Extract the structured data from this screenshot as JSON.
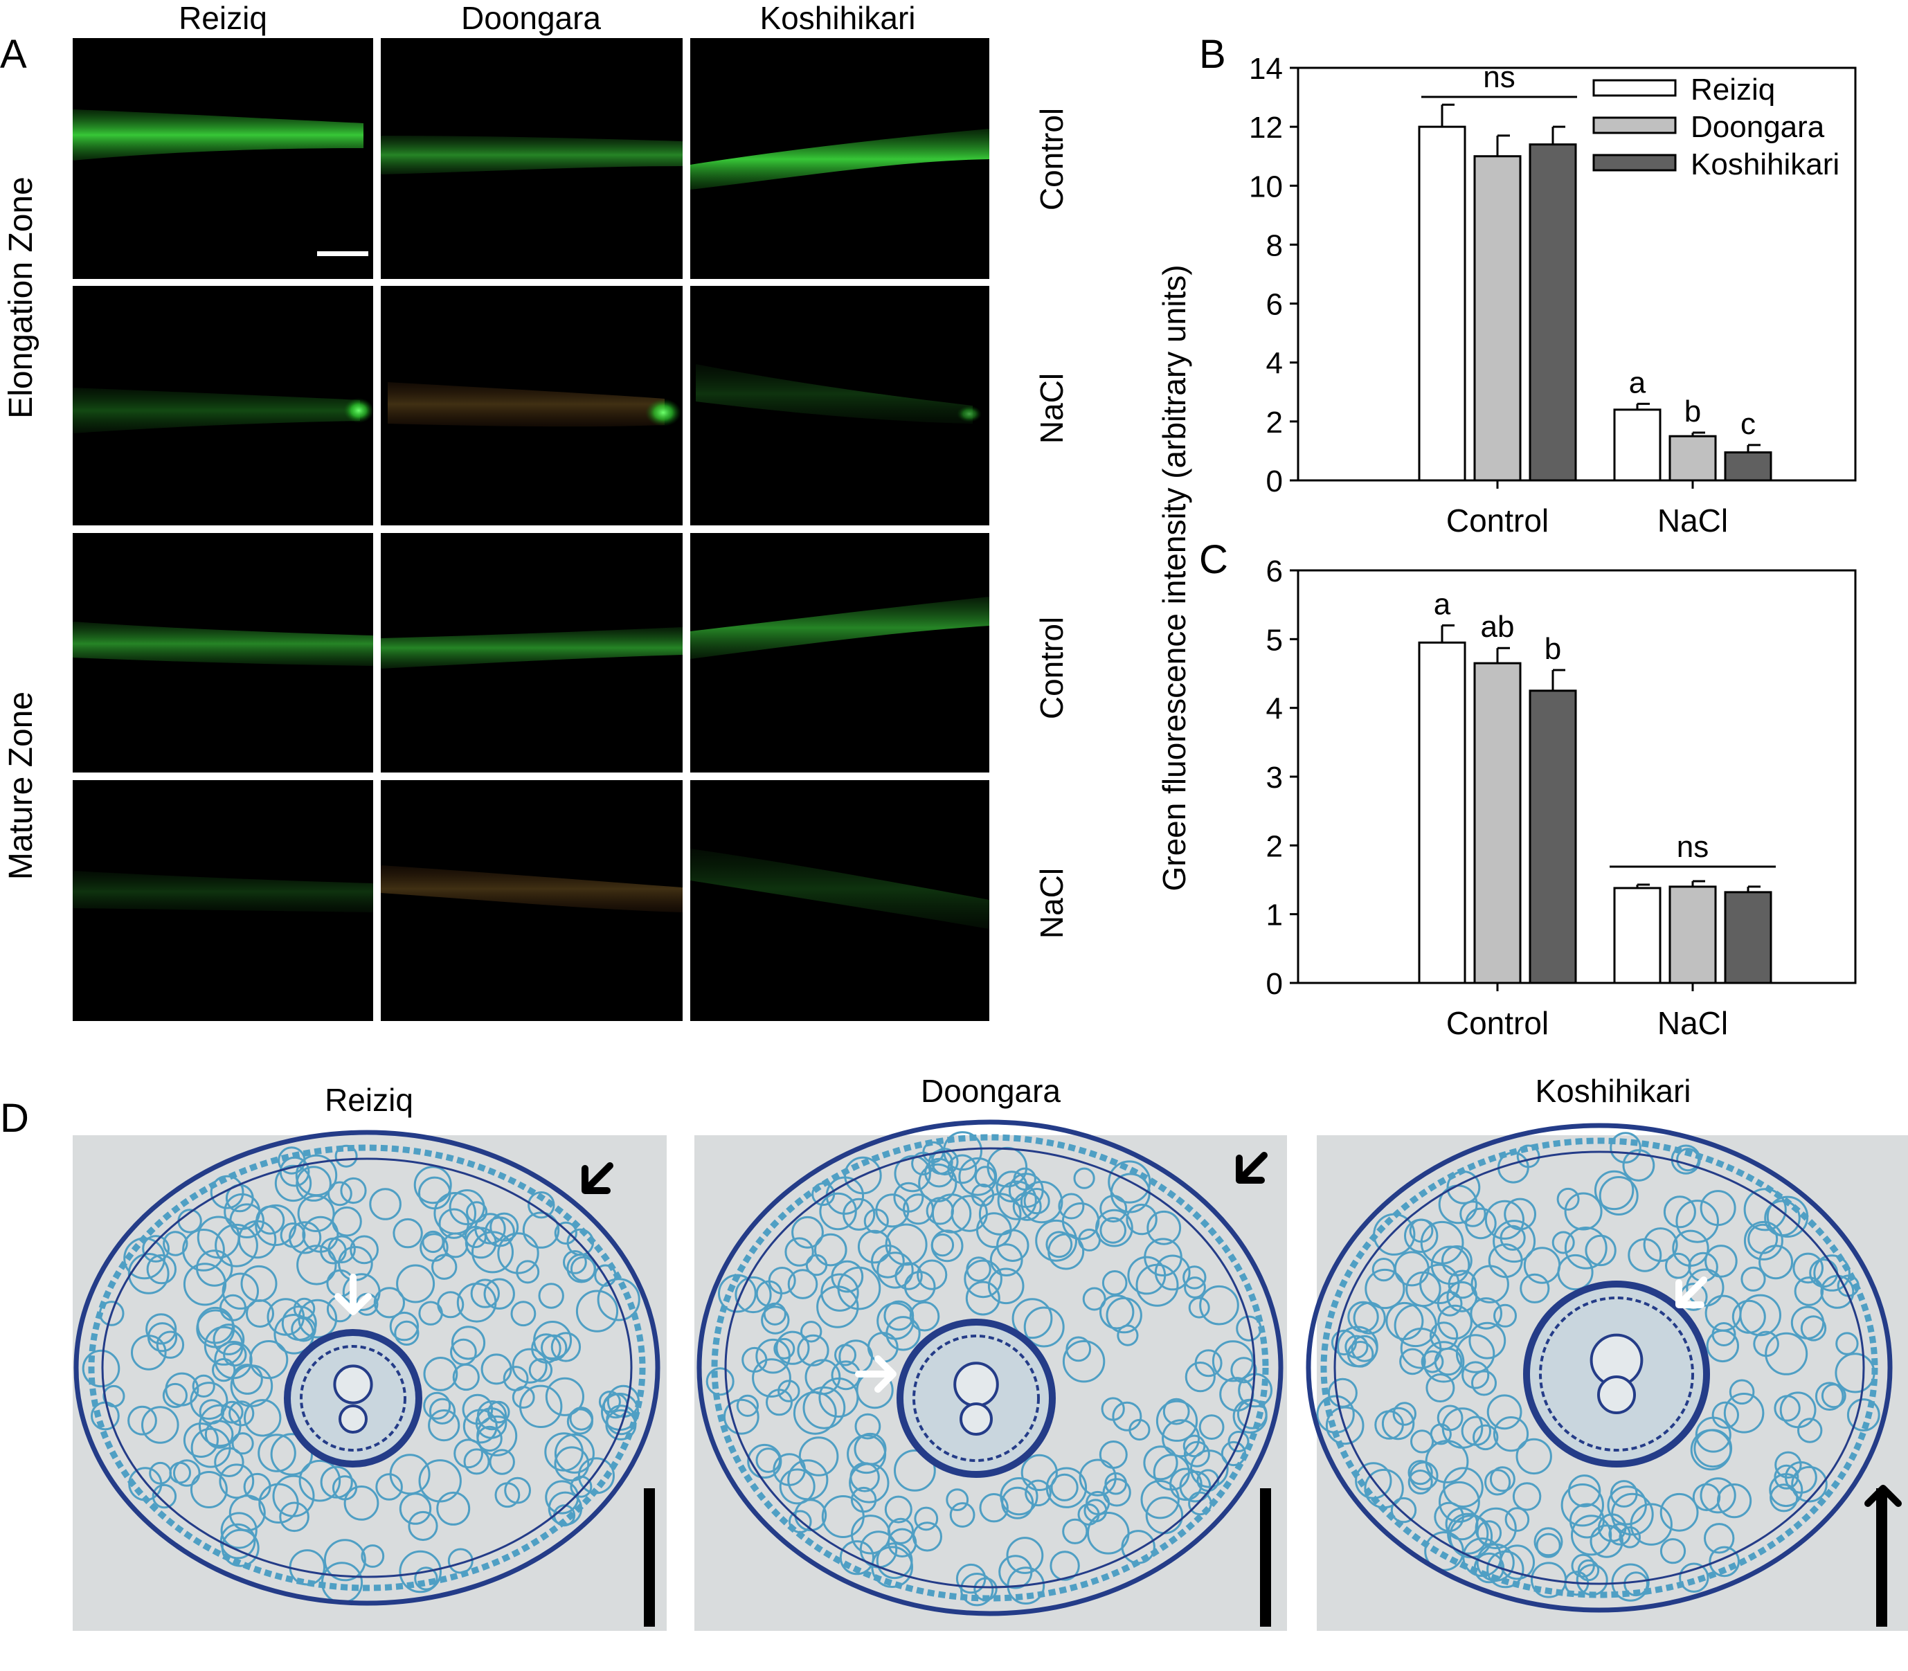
{
  "panel_letters": {
    "a": "A",
    "b": "B",
    "c": "C",
    "d": "D"
  },
  "panel_a": {
    "columns": [
      "Reiziq",
      "Doongara",
      "Koshihikari"
    ],
    "zones": [
      "Elongation Zone",
      "Mature Zone"
    ],
    "conditions": [
      "Control",
      "NaCl",
      "Control",
      "NaCl"
    ]
  },
  "panel_d": {
    "titles": [
      "Reiziq",
      "Doongara",
      "Koshihikari"
    ]
  },
  "colors": {
    "reiziq": "#ffffff",
    "doongara": "#c0c0c0",
    "koshihikari": "#606060",
    "micrograph_bg": "#d9dcdd",
    "stain": "#4f9fc4",
    "stain_dark": "#243c88"
  },
  "chart_data": [
    {
      "panel": "B",
      "type": "bar",
      "categories": [
        "Control",
        "NaCl"
      ],
      "series": [
        {
          "name": "Reiziq",
          "values": [
            12.0,
            2.4
          ],
          "errors": [
            0.75,
            0.2
          ]
        },
        {
          "name": "Doongara",
          "values": [
            11.0,
            1.5
          ],
          "errors": [
            0.7,
            0.12
          ]
        },
        {
          "name": "Koshihikari",
          "values": [
            11.4,
            0.95
          ],
          "errors": [
            0.6,
            0.25
          ]
        }
      ],
      "ylim": [
        0,
        14
      ],
      "yticks": [
        0,
        2,
        4,
        6,
        8,
        10,
        12,
        14
      ],
      "annotations": {
        "control_bracket": "ns",
        "nacl_letters": [
          "a",
          "b",
          "c"
        ]
      },
      "legend": "top-right"
    },
    {
      "panel": "C",
      "type": "bar",
      "categories": [
        "Control",
        "NaCl"
      ],
      "series": [
        {
          "name": "Reiziq",
          "values": [
            4.95,
            1.38
          ],
          "errors": [
            0.25,
            0.05
          ]
        },
        {
          "name": "Doongara",
          "values": [
            4.65,
            1.4
          ],
          "errors": [
            0.22,
            0.08
          ]
        },
        {
          "name": "Koshihikari",
          "values": [
            4.25,
            1.32
          ],
          "errors": [
            0.3,
            0.08
          ]
        }
      ],
      "ylim": [
        0,
        6
      ],
      "yticks": [
        0,
        1,
        2,
        3,
        4,
        5,
        6
      ],
      "annotations": {
        "control_letters": [
          "a",
          "ab",
          "b"
        ],
        "nacl_bracket": "ns"
      }
    }
  ],
  "shared_ylabel": "Green fluorescence intensity (arbitrary units)"
}
